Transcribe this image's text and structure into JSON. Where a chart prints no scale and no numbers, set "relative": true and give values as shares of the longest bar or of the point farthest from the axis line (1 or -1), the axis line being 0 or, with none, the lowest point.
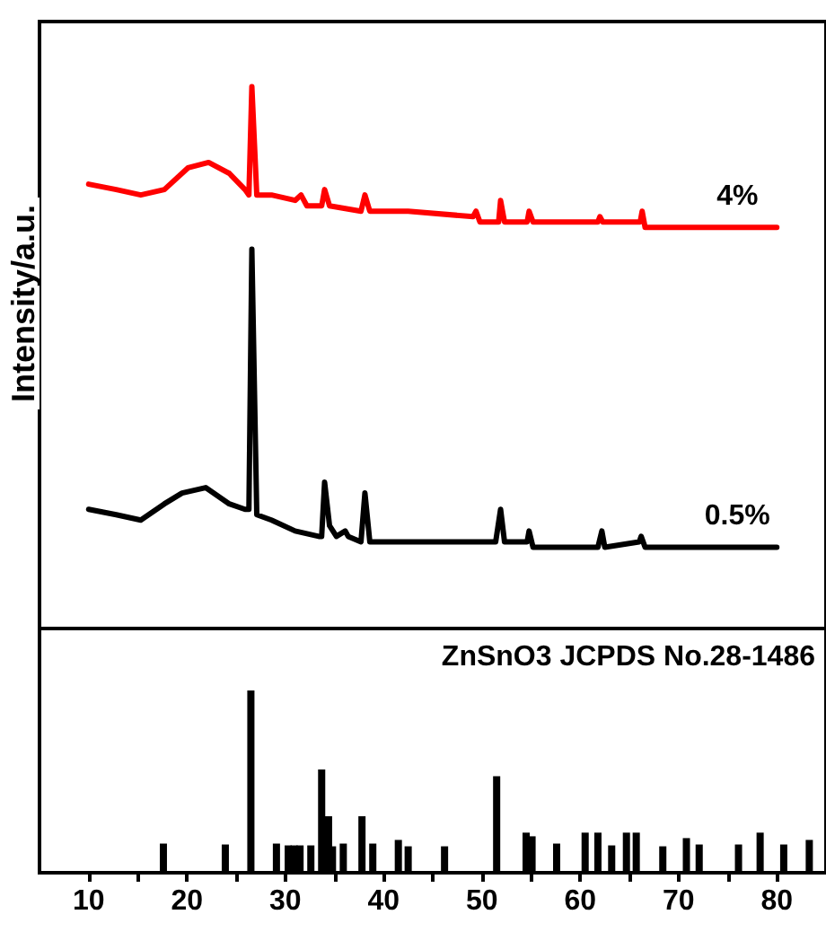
{
  "chart_data": [
    {
      "type": "line",
      "ylabel": "Intensity/a.u.",
      "relative": true,
      "xlim": [
        5,
        85
      ],
      "tick_labels": false,
      "grid": false,
      "legend": false,
      "marker": "none",
      "line_style": "solid",
      "series": [
        {
          "name": "4%",
          "color": "#ff0000",
          "x": [
            10.0,
            12.8,
            15.3,
            17.7,
            20.1,
            22.2,
            24.3,
            25.9,
            26.3,
            26.6,
            27.1,
            28.6,
            31.0,
            31.6,
            32.2,
            33.7,
            34.0,
            34.5,
            37.7,
            38.1,
            38.6,
            42.5,
            49.1,
            49.4,
            49.8,
            51.7,
            51.9,
            52.3,
            54.6,
            54.8,
            55.2,
            61.8,
            62.0,
            62.3,
            66.1,
            66.3,
            66.6,
            80.0
          ],
          "values": [
            0.82,
            0.81,
            0.8,
            0.81,
            0.85,
            0.86,
            0.84,
            0.81,
            0.8,
            1.0,
            0.8,
            0.8,
            0.79,
            0.8,
            0.78,
            0.78,
            0.81,
            0.78,
            0.77,
            0.8,
            0.77,
            0.77,
            0.76,
            0.77,
            0.75,
            0.75,
            0.79,
            0.75,
            0.75,
            0.77,
            0.75,
            0.75,
            0.76,
            0.75,
            0.75,
            0.77,
            0.74,
            0.74
          ]
        },
        {
          "name": "0.5%",
          "color": "#000000",
          "x": [
            10.0,
            12.8,
            15.3,
            17.7,
            19.5,
            21.9,
            24.3,
            25.9,
            26.3,
            26.6,
            27.1,
            28.6,
            31.0,
            33.4,
            33.7,
            34.0,
            34.5,
            35.2,
            36.1,
            36.4,
            37.7,
            38.1,
            38.6,
            43.7,
            51.4,
            51.9,
            52.3,
            54.6,
            54.8,
            55.2,
            61.8,
            62.2,
            62.5,
            66.0,
            66.2,
            66.6,
            80.0
          ],
          "values": [
            0.22,
            0.21,
            0.2,
            0.23,
            0.25,
            0.26,
            0.23,
            0.22,
            0.22,
            0.7,
            0.21,
            0.2,
            0.18,
            0.17,
            0.17,
            0.27,
            0.19,
            0.17,
            0.18,
            0.17,
            0.16,
            0.25,
            0.16,
            0.16,
            0.16,
            0.22,
            0.16,
            0.16,
            0.18,
            0.15,
            0.15,
            0.18,
            0.15,
            0.16,
            0.17,
            0.15,
            0.15
          ]
        }
      ]
    },
    {
      "type": "bar",
      "relative": true,
      "xlim": [
        5,
        85
      ],
      "xticks": [
        10,
        {
          "value": 15,
          "label": null
        },
        20,
        {
          "value": 25,
          "label": null
        },
        30,
        {
          "value": 35,
          "label": null
        },
        40,
        {
          "value": 45,
          "label": null
        },
        50,
        {
          "value": 55,
          "label": null
        },
        60,
        {
          "value": 65,
          "label": null
        },
        70,
        {
          "value": 75,
          "label": null
        },
        80
      ],
      "grid": false,
      "legend": false,
      "series": [
        {
          "name": "ZnSnO3 JCPDS No.28-1486",
          "color": "#000000",
          "x": [
            17.6,
            23.9,
            26.5,
            29.1,
            30.3,
            30.9,
            31.5,
            32.6,
            33.7,
            34.4,
            34.8,
            35.9,
            37.8,
            38.9,
            41.5,
            42.5,
            46.2,
            51.5,
            54.5,
            55.1,
            57.6,
            60.5,
            61.8,
            63.2,
            64.7,
            65.7,
            68.4,
            70.8,
            72.1,
            76.1,
            78.3,
            80.7,
            83.3
          ],
          "values": [
            0.16,
            0.155,
            1.0,
            0.16,
            0.15,
            0.15,
            0.15,
            0.15,
            0.566,
            0.31,
            0.145,
            0.16,
            0.31,
            0.16,
            0.18,
            0.145,
            0.145,
            0.53,
            0.22,
            0.2,
            0.16,
            0.22,
            0.22,
            0.15,
            0.22,
            0.22,
            0.145,
            0.19,
            0.155,
            0.155,
            0.22,
            0.155,
            0.18
          ]
        }
      ]
    }
  ]
}
